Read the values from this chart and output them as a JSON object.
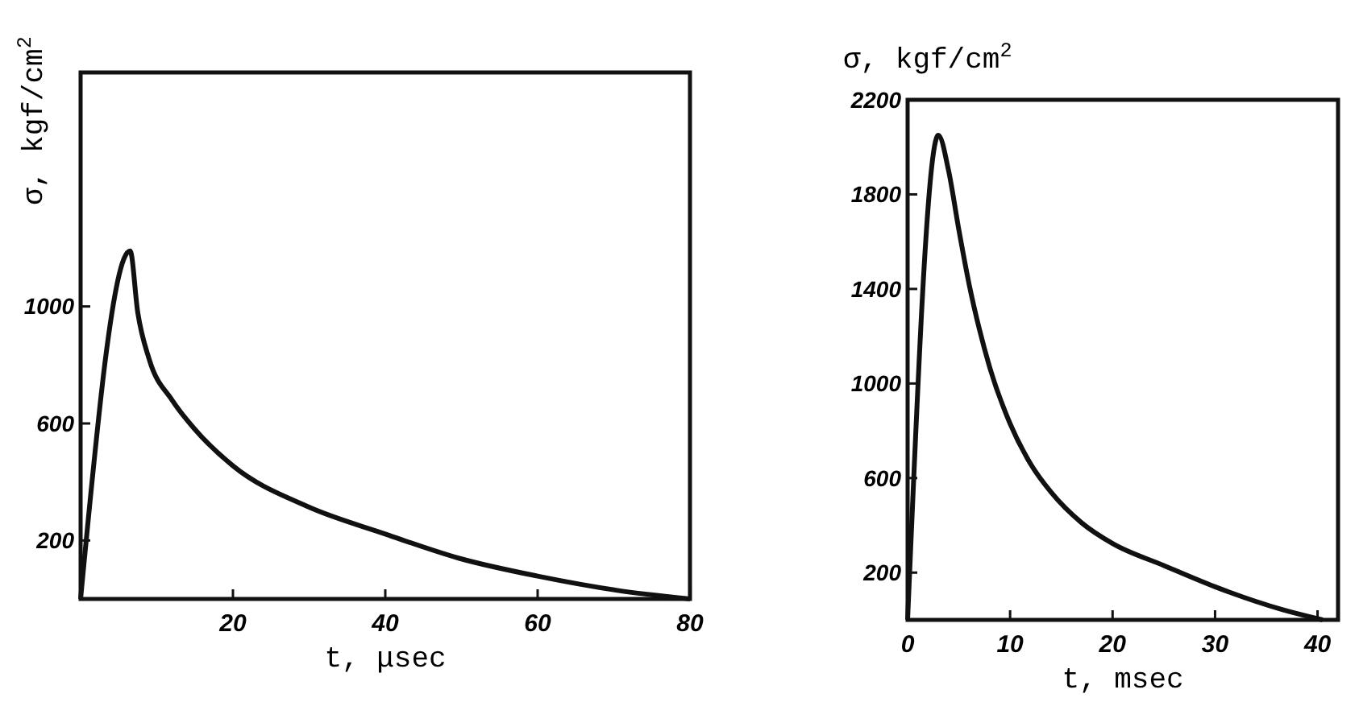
{
  "chart_data": [
    {
      "type": "line",
      "xlabel": "t, μsec",
      "ylabel": "σ, kgf/cm$^{2}$",
      "xlim": [
        0,
        80
      ],
      "ylim": [
        0,
        1800
      ],
      "xticks": [
        20,
        40,
        60,
        80
      ],
      "yticks": [
        200,
        600,
        1000
      ],
      "grid": false,
      "marker": "none",
      "line_style": "solid",
      "series": [
        {
          "color": "#111111",
          "x": [
            0,
            6.5,
            7.5,
            9,
            12,
            15,
            20,
            29.7,
            40,
            49.7,
            60,
            70.3,
            80
          ],
          "values": [
            0,
            1190,
            980,
            820,
            680,
            580,
            455,
            317,
            222,
            139,
            78,
            30,
            0
          ]
        }
      ]
    },
    {
      "type": "line",
      "xlabel": "t, msec",
      "ylabel": "σ, kgf/cm$^{2}$",
      "xlim": [
        0,
        42
      ],
      "ylim": [
        0,
        2200
      ],
      "xticks": [
        0,
        10,
        20,
        30,
        40
      ],
      "yticks": [
        200,
        600,
        1000,
        1400,
        1800,
        2200
      ],
      "grid": false,
      "marker": "none",
      "line_style": "solid",
      "series": [
        {
          "color": "#111111",
          "x": [
            0,
            3,
            4,
            5,
            6,
            7,
            8,
            10,
            12,
            14,
            17,
            20,
            25,
            30,
            36.6,
            40.5
          ],
          "values": [
            0,
            2050,
            1900,
            1650,
            1420,
            1230,
            1070,
            830,
            660,
            540,
            410,
            323,
            230,
            140,
            43,
            0
          ]
        }
      ]
    }
  ]
}
